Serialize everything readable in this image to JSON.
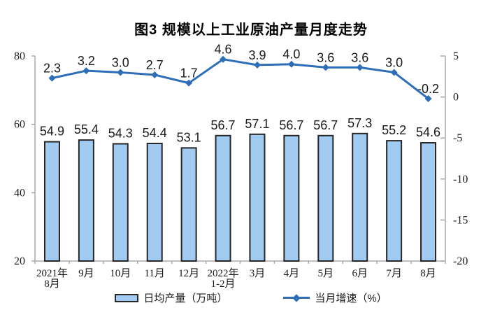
{
  "title": "图3 规模以上工业原油产量月度走势",
  "chart_data": {
    "type": "bar+line",
    "title": "图3 规模以上工业原油产量月度走势",
    "categories": [
      [
        "2021年",
        "8月"
      ],
      [
        "9月"
      ],
      [
        "10月"
      ],
      [
        "11月"
      ],
      [
        "12月"
      ],
      [
        "2022年",
        "1-2月"
      ],
      [
        "3月"
      ],
      [
        "4月"
      ],
      [
        "5月"
      ],
      [
        "6月"
      ],
      [
        "7月"
      ],
      [
        "8月"
      ]
    ],
    "series": [
      {
        "name": "日均产量（万吨）",
        "type": "bar",
        "axis": "left",
        "values": [
          54.9,
          55.4,
          54.3,
          54.4,
          53.1,
          56.7,
          57.1,
          56.7,
          56.7,
          57.3,
          55.2,
          54.6
        ]
      },
      {
        "name": "当月增速（%）",
        "type": "line",
        "axis": "right",
        "values": [
          2.3,
          3.2,
          3.0,
          2.7,
          1.7,
          4.6,
          3.9,
          4.0,
          3.6,
          3.6,
          3.0,
          -0.2
        ]
      }
    ],
    "left_axis": {
      "min": 20,
      "max": 80,
      "ticks": [
        80,
        60,
        40,
        20
      ]
    },
    "right_axis": {
      "min": -20,
      "max": 5,
      "ticks": [
        5,
        0,
        -5,
        -10,
        -15,
        -20
      ]
    },
    "grid": false,
    "legend_position": "bottom",
    "data_labels": true,
    "colors": {
      "bar_fill": "#A2CBF2",
      "bar_border": "#262626",
      "line": "#2E6DB8",
      "axis": "#AAAAAA",
      "text": "#1A1A1A"
    }
  },
  "legend": {
    "items": [
      {
        "label": "日均产量（万吨）",
        "swatch": "bar"
      },
      {
        "label": "当月增速（%）",
        "swatch": "line"
      }
    ]
  }
}
